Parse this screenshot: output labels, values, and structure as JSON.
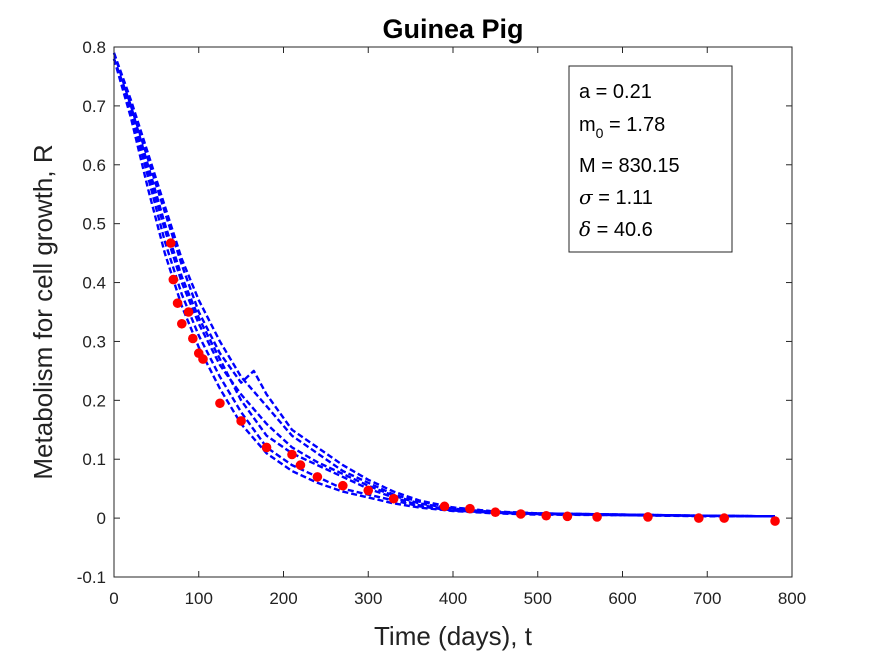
{
  "chart_data": {
    "type": "scatter",
    "title": "Guinea Pig",
    "xlabel": "Time (days), t",
    "ylabel": "Metabolism for cell growth, R",
    "xlim": [
      0,
      800
    ],
    "ylim": [
      -0.1,
      0.8
    ],
    "x_ticks": [
      "0",
      "100",
      "200",
      "300",
      "400",
      "500",
      "600",
      "700",
      "800"
    ],
    "y_ticks": [
      "-0.1",
      "0",
      "0.1",
      "0.2",
      "0.3",
      "0.4",
      "0.5",
      "0.6",
      "0.7",
      "0.8"
    ],
    "grid": false,
    "colors": {
      "simulation": "#0000ff",
      "data": "#ff0000"
    },
    "annotation": {
      "position": "top-right",
      "lines": [
        {
          "label": "a",
          "value": "0.21"
        },
        {
          "label": "m",
          "sub": "0",
          "value": "1.78"
        },
        {
          "label": "M",
          "value": "830.15"
        },
        {
          "label": "σ",
          "value": "1.11",
          "greek": true
        },
        {
          "label": "δ",
          "value": "40.6",
          "greek": true
        }
      ]
    },
    "series": [
      {
        "style": "dashed-line",
        "runs": [
          {
            "x": [
              0,
              20,
              40,
              60,
              80,
              100,
              125,
              150,
              180,
              210,
              240,
              270,
              300,
              330,
              360,
              400,
              450,
              500,
              600,
              700,
              780
            ],
            "y": [
              0.78,
              0.7,
              0.6,
              0.5,
              0.41,
              0.34,
              0.27,
              0.2,
              0.14,
              0.11,
              0.09,
              0.07,
              0.05,
              0.035,
              0.022,
              0.015,
              0.01,
              0.008,
              0.006,
              0.004,
              0.003
            ]
          },
          {
            "x": [
              0,
              20,
              40,
              60,
              80,
              100,
              125,
              150,
              180,
              210,
              240,
              270,
              300,
              330,
              360,
              400,
              450,
              500,
              600,
              700,
              780
            ],
            "y": [
              0.78,
              0.69,
              0.58,
              0.47,
              0.38,
              0.31,
              0.24,
              0.18,
              0.12,
              0.09,
              0.07,
              0.05,
              0.04,
              0.03,
              0.02,
              0.013,
              0.009,
              0.007,
              0.005,
              0.004,
              0.003
            ]
          },
          {
            "x": [
              0,
              20,
              40,
              60,
              80,
              100,
              125,
              150,
              180,
              210,
              240,
              270,
              300,
              330,
              360,
              400,
              450,
              500,
              600,
              700,
              780
            ],
            "y": [
              0.79,
              0.71,
              0.62,
              0.53,
              0.44,
              0.37,
              0.3,
              0.24,
              0.19,
              0.14,
              0.11,
              0.08,
              0.06,
              0.04,
              0.028,
              0.018,
              0.011,
              0.008,
              0.006,
              0.004,
              0.003
            ]
          },
          {
            "x": [
              0,
              20,
              40,
              60,
              80,
              100,
              125,
              150,
              180,
              210,
              240,
              270,
              300,
              330,
              360,
              400,
              450,
              500,
              600,
              700,
              780
            ],
            "y": [
              0.78,
              0.68,
              0.56,
              0.45,
              0.36,
              0.29,
              0.22,
              0.16,
              0.11,
              0.08,
              0.06,
              0.045,
              0.035,
              0.025,
              0.018,
              0.012,
              0.008,
              0.006,
              0.005,
              0.003,
              0.003
            ]
          },
          {
            "x": [
              0,
              20,
              40,
              60,
              80,
              100,
              125,
              150,
              165,
              180,
              210,
              240,
              270,
              300,
              330,
              360,
              400,
              450,
              500,
              600,
              700,
              780
            ],
            "y": [
              0.79,
              0.7,
              0.61,
              0.52,
              0.43,
              0.35,
              0.28,
              0.23,
              0.25,
              0.21,
              0.15,
              0.12,
              0.09,
              0.065,
              0.045,
              0.03,
              0.018,
              0.011,
              0.008,
              0.006,
              0.004,
              0.003
            ]
          },
          {
            "x": [
              0,
              20,
              40,
              60,
              80,
              100,
              125,
              150,
              180,
              210,
              240,
              270,
              300,
              330,
              360,
              400,
              450,
              500,
              600,
              700,
              780
            ],
            "y": [
              0.78,
              0.7,
              0.59,
              0.49,
              0.4,
              0.33,
              0.26,
              0.21,
              0.16,
              0.12,
              0.095,
              0.075,
              0.055,
              0.038,
              0.025,
              0.016,
              0.01,
              0.008,
              0.006,
              0.004,
              0.003
            ]
          }
        ]
      },
      {
        "style": "markers",
        "x": [
          67,
          70,
          75,
          80,
          88,
          93,
          100,
          105,
          125,
          150,
          180,
          210,
          220,
          240,
          270,
          300,
          330,
          390,
          420,
          450,
          480,
          510,
          535,
          570,
          630,
          690,
          720,
          780
        ],
        "y": [
          0.467,
          0.405,
          0.365,
          0.33,
          0.35,
          0.305,
          0.28,
          0.27,
          0.195,
          0.165,
          0.12,
          0.108,
          0.09,
          0.07,
          0.055,
          0.047,
          0.033,
          0.02,
          0.016,
          0.01,
          0.007,
          0.004,
          0.003,
          0.002,
          0.002,
          0.0,
          0.0,
          -0.005
        ]
      }
    ]
  }
}
